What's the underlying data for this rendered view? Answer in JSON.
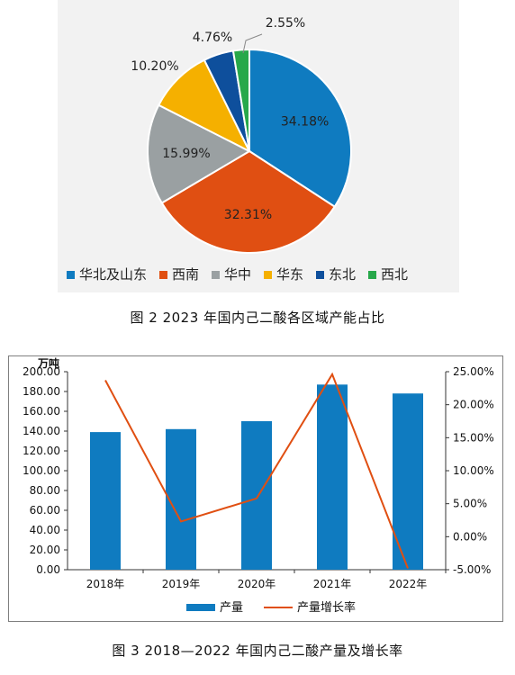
{
  "figure_1": {
    "caption": "图 2  2023 年国内己二酸各区域产能占比"
  },
  "figure_2": {
    "caption": "图 3  2018—2022 年国内己二酸产量及增长率"
  },
  "chart_data": [
    {
      "type": "pie",
      "title": "",
      "slices": [
        {
          "label": "华北及山东",
          "value": 34.18,
          "display": "34.18%",
          "color": "#0f7bc0"
        },
        {
          "label": "西南",
          "value": 32.31,
          "display": "32.31%",
          "color": "#e04f12"
        },
        {
          "label": "华中",
          "value": 15.99,
          "display": "15.99%",
          "color": "#9aa0a2"
        },
        {
          "label": "华东",
          "value": 10.2,
          "display": "10.20%",
          "color": "#f5b000"
        },
        {
          "label": "东北",
          "value": 4.76,
          "display": "4.76%",
          "color": "#0e4f9c"
        },
        {
          "label": "西北",
          "value": 2.55,
          "display": "2.55%",
          "color": "#27a84a"
        }
      ],
      "legend": [
        "华北及山东",
        "西南",
        "华中",
        "华东",
        "东北",
        "西北"
      ],
      "legend_position": "bottom"
    },
    {
      "type": "bar",
      "title": "",
      "categories": [
        "2018年",
        "2019年",
        "2020年",
        "2021年",
        "2022年"
      ],
      "series": [
        {
          "name": "产量",
          "type": "bar",
          "axis": "left",
          "color": "#0f7bc0",
          "values": [
            139.0,
            142.0,
            150.0,
            187.0,
            178.0
          ]
        },
        {
          "name": "产量增长率",
          "type": "line",
          "axis": "right",
          "color": "#e04f12",
          "values": [
            23.7,
            2.3,
            5.8,
            24.6,
            -4.8
          ]
        }
      ],
      "ylabel": "万吨",
      "ylim": [
        0,
        200
      ],
      "yticks": [
        "0.00",
        "20.00",
        "40.00",
        "60.00",
        "80.00",
        "100.00",
        "120.00",
        "140.00",
        "160.00",
        "180.00",
        "200.00"
      ],
      "y2lim": [
        -5,
        25
      ],
      "y2ticks": [
        "-5.00%",
        "0.00%",
        "5.00%",
        "10.00%",
        "15.00%",
        "20.00%",
        "25.00%"
      ],
      "legend_position": "bottom",
      "grid": false
    }
  ]
}
